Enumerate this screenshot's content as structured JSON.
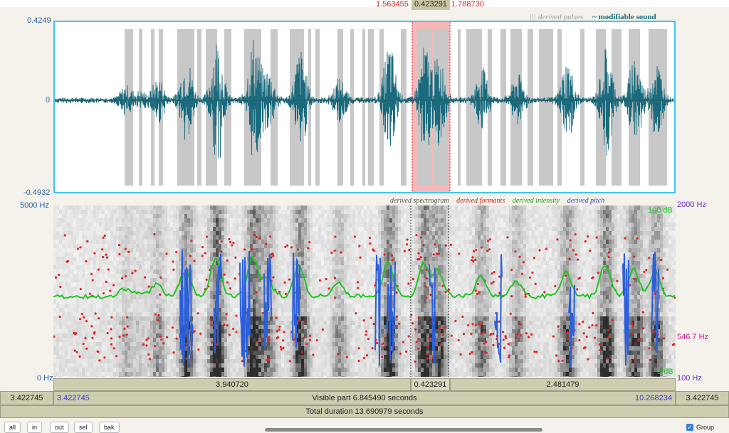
{
  "selection": {
    "left_time": "1.563455",
    "mid_time": "0.423291",
    "right_time": "1.788730"
  },
  "waveform": {
    "legend_pulses": "||| derived pulses",
    "legend_sound": "~ modifiable sound",
    "max_label": "0.4249",
    "zero_label": "0",
    "min_label": "-0.4932",
    "wave_color": "#1a6b7d",
    "pulse_color": "#c8c8c8",
    "selection_color": "#f4b8b8"
  },
  "spectrogram": {
    "legend": {
      "spectrogram": "derived spectrogram",
      "formants": "derived formants",
      "intensity": "derived intensity",
      "pitch": "derived pitch"
    },
    "freq_top": "5000 Hz",
    "freq_bottom": "0 Hz",
    "pitch_top": "2000 Hz",
    "pitch_mid": "546.7 Hz",
    "pitch_bottom": "100 Hz",
    "db_top": "100 dB",
    "db_bottom": "0 dB",
    "formant_color": "#e32222",
    "intensity_color": "#22c322",
    "pitch_color": "#2b5fdb"
  },
  "segments": {
    "left": "3.940720",
    "mid": "0.423291",
    "right": "2.481479"
  },
  "visible": {
    "left_total": "3.422745",
    "start": "3.422745",
    "label": "Visible part 6.845490 seconds",
    "end": "10.268234",
    "right_total": "3.422745"
  },
  "total": {
    "label": "Total duration 13.690979 seconds"
  },
  "buttons": {
    "all": "all",
    "in": "in",
    "out": "out",
    "sel": "sel",
    "bak": "bak"
  },
  "group": {
    "label": "Group",
    "checked": true
  }
}
